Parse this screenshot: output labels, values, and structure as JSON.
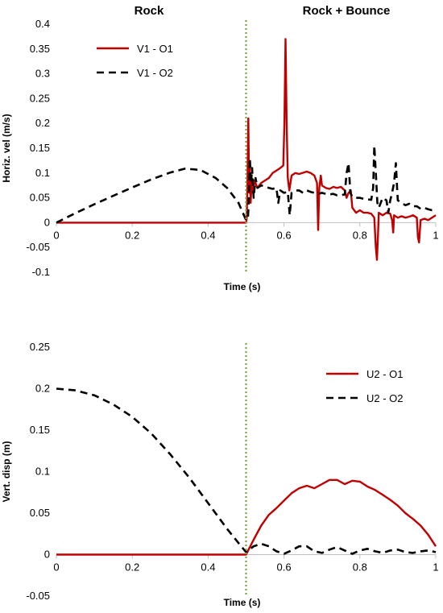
{
  "phase_labels": {
    "left": "Rock",
    "right": "Rock + Bounce"
  },
  "chart_data": [
    {
      "type": "line",
      "ylabel": "Horiz. vel (m/s)",
      "xlabel": "Time (s)",
      "xlim": [
        0,
        1
      ],
      "ylim": [
        -0.1,
        0.4
      ],
      "xticks": [
        "0",
        "0.2",
        "0.4",
        "0.6",
        "0.8",
        "1"
      ],
      "yticks": [
        "-0.1",
        "-0.05",
        "0",
        "0.05",
        "0.1",
        "0.15",
        "0.2",
        "0.25",
        "0.3",
        "0.35",
        "0.4"
      ],
      "grid": false,
      "vline_x": 0.5,
      "legend": "top-left",
      "series": [
        {
          "name": "V1 - O1",
          "color": "#c00000",
          "style": "solid",
          "points": [
            [
              0,
              0
            ],
            [
              0.1,
              0
            ],
            [
              0.2,
              0
            ],
            [
              0.3,
              0
            ],
            [
              0.4,
              0
            ],
            [
              0.5,
              0
            ],
            [
              0.502,
              0.01
            ],
            [
              0.504,
              0.1
            ],
            [
              0.506,
              0.21
            ],
            [
              0.508,
              0.06
            ],
            [
              0.51,
              0.11
            ],
            [
              0.512,
              0.04
            ],
            [
              0.515,
              0.09
            ],
            [
              0.518,
              0.06
            ],
            [
              0.522,
              0.085
            ],
            [
              0.53,
              0.07
            ],
            [
              0.54,
              0.08
            ],
            [
              0.55,
              0.085
            ],
            [
              0.56,
              0.09
            ],
            [
              0.57,
              0.1
            ],
            [
              0.58,
              0.105
            ],
            [
              0.59,
              0.11
            ],
            [
              0.598,
              0.115
            ],
            [
              0.601,
              0.2
            ],
            [
              0.604,
              0.37
            ],
            [
              0.607,
              0.2
            ],
            [
              0.61,
              0.09
            ],
            [
              0.614,
              0.065
            ],
            [
              0.62,
              0.095
            ],
            [
              0.63,
              0.1
            ],
            [
              0.64,
              0.098
            ],
            [
              0.66,
              0.103
            ],
            [
              0.67,
              0.1
            ],
            [
              0.68,
              0.095
            ],
            [
              0.687,
              0.08
            ],
            [
              0.69,
              -0.015
            ],
            [
              0.693,
              0.07
            ],
            [
              0.697,
              0.095
            ],
            [
              0.7,
              0.075
            ],
            [
              0.71,
              0.07
            ],
            [
              0.72,
              0.068
            ],
            [
              0.73,
              0.072
            ],
            [
              0.74,
              0.07
            ],
            [
              0.75,
              0.072
            ],
            [
              0.76,
              0.065
            ],
            [
              0.765,
              0.05
            ],
            [
              0.77,
              0.06
            ],
            [
              0.776,
              0.065
            ],
            [
              0.78,
              0.03
            ],
            [
              0.79,
              0.02
            ],
            [
              0.8,
              0.025
            ],
            [
              0.81,
              0.02
            ],
            [
              0.82,
              0.02
            ],
            [
              0.83,
              0.018
            ],
            [
              0.838,
              0.01
            ],
            [
              0.842,
              -0.05
            ],
            [
              0.845,
              -0.075
            ],
            [
              0.848,
              -0.02
            ],
            [
              0.85,
              0.02
            ],
            [
              0.86,
              0.015
            ],
            [
              0.87,
              0.02
            ],
            [
              0.88,
              0.018
            ],
            [
              0.885,
              0.005
            ],
            [
              0.888,
              -0.02
            ],
            [
              0.89,
              0.015
            ],
            [
              0.9,
              0.01
            ],
            [
              0.91,
              0.013
            ],
            [
              0.92,
              0.01
            ],
            [
              0.93,
              0.012
            ],
            [
              0.94,
              0.015
            ],
            [
              0.95,
              0.01
            ],
            [
              0.953,
              -0.03
            ],
            [
              0.956,
              -0.04
            ],
            [
              0.96,
              0.005
            ],
            [
              0.97,
              0.008
            ],
            [
              0.98,
              0.005
            ],
            [
              0.99,
              0.01
            ],
            [
              1,
              0.015
            ]
          ]
        },
        {
          "name": "V1 - O2",
          "color": "#000000",
          "style": "dashed",
          "points": [
            [
              0,
              0
            ],
            [
              0.05,
              0.019
            ],
            [
              0.1,
              0.037
            ],
            [
              0.15,
              0.054
            ],
            [
              0.2,
              0.071
            ],
            [
              0.25,
              0.087
            ],
            [
              0.3,
              0.101
            ],
            [
              0.34,
              0.109
            ],
            [
              0.38,
              0.106
            ],
            [
              0.42,
              0.09
            ],
            [
              0.45,
              0.07
            ],
            [
              0.48,
              0.04
            ],
            [
              0.5,
              0.005
            ],
            [
              0.505,
              0.01
            ],
            [
              0.508,
              0.06
            ],
            [
              0.51,
              0.13
            ],
            [
              0.513,
              0.08
            ],
            [
              0.516,
              0.11
            ],
            [
              0.52,
              0.05
            ],
            [
              0.525,
              0.09
            ],
            [
              0.53,
              0.07
            ],
            [
              0.54,
              0.075
            ],
            [
              0.55,
              0.073
            ],
            [
              0.56,
              0.07
            ],
            [
              0.57,
              0.068
            ],
            [
              0.58,
              0.07
            ],
            [
              0.585,
              0.04
            ],
            [
              0.59,
              0.065
            ],
            [
              0.6,
              0.06
            ],
            [
              0.61,
              0.062
            ],
            [
              0.615,
              0.015
            ],
            [
              0.62,
              0.06
            ],
            [
              0.63,
              0.065
            ],
            [
              0.64,
              0.065
            ],
            [
              0.65,
              0.06
            ],
            [
              0.66,
              0.065
            ],
            [
              0.67,
              0.062
            ],
            [
              0.68,
              0.06
            ],
            [
              0.69,
              0.058
            ],
            [
              0.7,
              0.06
            ],
            [
              0.71,
              0.058
            ],
            [
              0.72,
              0.057
            ],
            [
              0.73,
              0.058
            ],
            [
              0.74,
              0.055
            ],
            [
              0.75,
              0.055
            ],
            [
              0.76,
              0.057
            ],
            [
              0.765,
              0.1
            ],
            [
              0.77,
              0.12
            ],
            [
              0.775,
              0.06
            ],
            [
              0.78,
              0.052
            ],
            [
              0.79,
              0.05
            ],
            [
              0.8,
              0.05
            ],
            [
              0.81,
              0.048
            ],
            [
              0.82,
              0.047
            ],
            [
              0.83,
              0.046
            ],
            [
              0.835,
              0.07
            ],
            [
              0.838,
              0.155
            ],
            [
              0.842,
              0.1
            ],
            [
              0.846,
              0.04
            ],
            [
              0.85,
              0.03
            ],
            [
              0.86,
              0.05
            ],
            [
              0.87,
              0.045
            ],
            [
              0.875,
              0.02
            ],
            [
              0.88,
              0.045
            ],
            [
              0.885,
              0.06
            ],
            [
              0.89,
              0.08
            ],
            [
              0.895,
              0.12
            ],
            [
              0.898,
              0.07
            ],
            [
              0.9,
              0.045
            ],
            [
              0.91,
              0.04
            ],
            [
              0.92,
              0.035
            ],
            [
              0.93,
              0.038
            ],
            [
              0.94,
              0.033
            ],
            [
              0.95,
              0.033
            ],
            [
              0.96,
              0.028
            ],
            [
              0.97,
              0.03
            ],
            [
              0.98,
              0.027
            ],
            [
              0.99,
              0.025
            ],
            [
              1,
              0.025
            ]
          ]
        }
      ]
    },
    {
      "type": "line",
      "ylabel": "Vert. disp (m)",
      "xlabel": "Time (s)",
      "xlim": [
        0,
        1
      ],
      "ylim": [
        -0.05,
        0.25
      ],
      "xticks": [
        "0",
        "0.2",
        "0.4",
        "0.6",
        "0.8",
        "1"
      ],
      "yticks": [
        "-0.05",
        "0",
        "0.05",
        "0.1",
        "0.15",
        "0.2",
        "0.25"
      ],
      "grid": false,
      "vline_x": 0.5,
      "legend": "top-right",
      "series": [
        {
          "name": "U2 - O1",
          "color": "#c00000",
          "style": "solid",
          "points": [
            [
              0,
              0
            ],
            [
              0.1,
              0
            ],
            [
              0.2,
              0
            ],
            [
              0.3,
              0
            ],
            [
              0.4,
              0
            ],
            [
              0.5,
              0
            ],
            [
              0.52,
              0.018
            ],
            [
              0.54,
              0.035
            ],
            [
              0.56,
              0.048
            ],
            [
              0.58,
              0.056
            ],
            [
              0.6,
              0.065
            ],
            [
              0.62,
              0.074
            ],
            [
              0.64,
              0.08
            ],
            [
              0.66,
              0.083
            ],
            [
              0.68,
              0.08
            ],
            [
              0.7,
              0.085
            ],
            [
              0.72,
              0.09
            ],
            [
              0.74,
              0.09
            ],
            [
              0.76,
              0.085
            ],
            [
              0.78,
              0.089
            ],
            [
              0.8,
              0.088
            ],
            [
              0.82,
              0.082
            ],
            [
              0.84,
              0.078
            ],
            [
              0.86,
              0.072
            ],
            [
              0.88,
              0.066
            ],
            [
              0.9,
              0.059
            ],
            [
              0.92,
              0.05
            ],
            [
              0.94,
              0.043
            ],
            [
              0.96,
              0.035
            ],
            [
              0.98,
              0.024
            ],
            [
              1,
              0.01
            ]
          ]
        },
        {
          "name": "U2 - O2",
          "color": "#000000",
          "style": "dashed",
          "points": [
            [
              0,
              0.2
            ],
            [
              0.05,
              0.198
            ],
            [
              0.1,
              0.192
            ],
            [
              0.15,
              0.181
            ],
            [
              0.2,
              0.166
            ],
            [
              0.25,
              0.146
            ],
            [
              0.3,
              0.121
            ],
            [
              0.35,
              0.093
            ],
            [
              0.4,
              0.062
            ],
            [
              0.45,
              0.031
            ],
            [
              0.48,
              0.014
            ],
            [
              0.5,
              0.003
            ],
            [
              0.52,
              0.01
            ],
            [
              0.54,
              0.013
            ],
            [
              0.56,
              0.01
            ],
            [
              0.58,
              0.004
            ],
            [
              0.6,
              0.001
            ],
            [
              0.62,
              0.005
            ],
            [
              0.64,
              0.01
            ],
            [
              0.66,
              0.01
            ],
            [
              0.68,
              0.004
            ],
            [
              0.7,
              0.002
            ],
            [
              0.72,
              0.006
            ],
            [
              0.74,
              0.009
            ],
            [
              0.76,
              0.005
            ],
            [
              0.78,
              0.001
            ],
            [
              0.8,
              0.005
            ],
            [
              0.82,
              0.007
            ],
            [
              0.84,
              0.004
            ],
            [
              0.86,
              0.002
            ],
            [
              0.88,
              0.005
            ],
            [
              0.9,
              0.006
            ],
            [
              0.92,
              0.003
            ],
            [
              0.94,
              0.002
            ],
            [
              0.96,
              0.004
            ],
            [
              0.98,
              0.005
            ],
            [
              1,
              0.003
            ]
          ]
        }
      ]
    }
  ]
}
